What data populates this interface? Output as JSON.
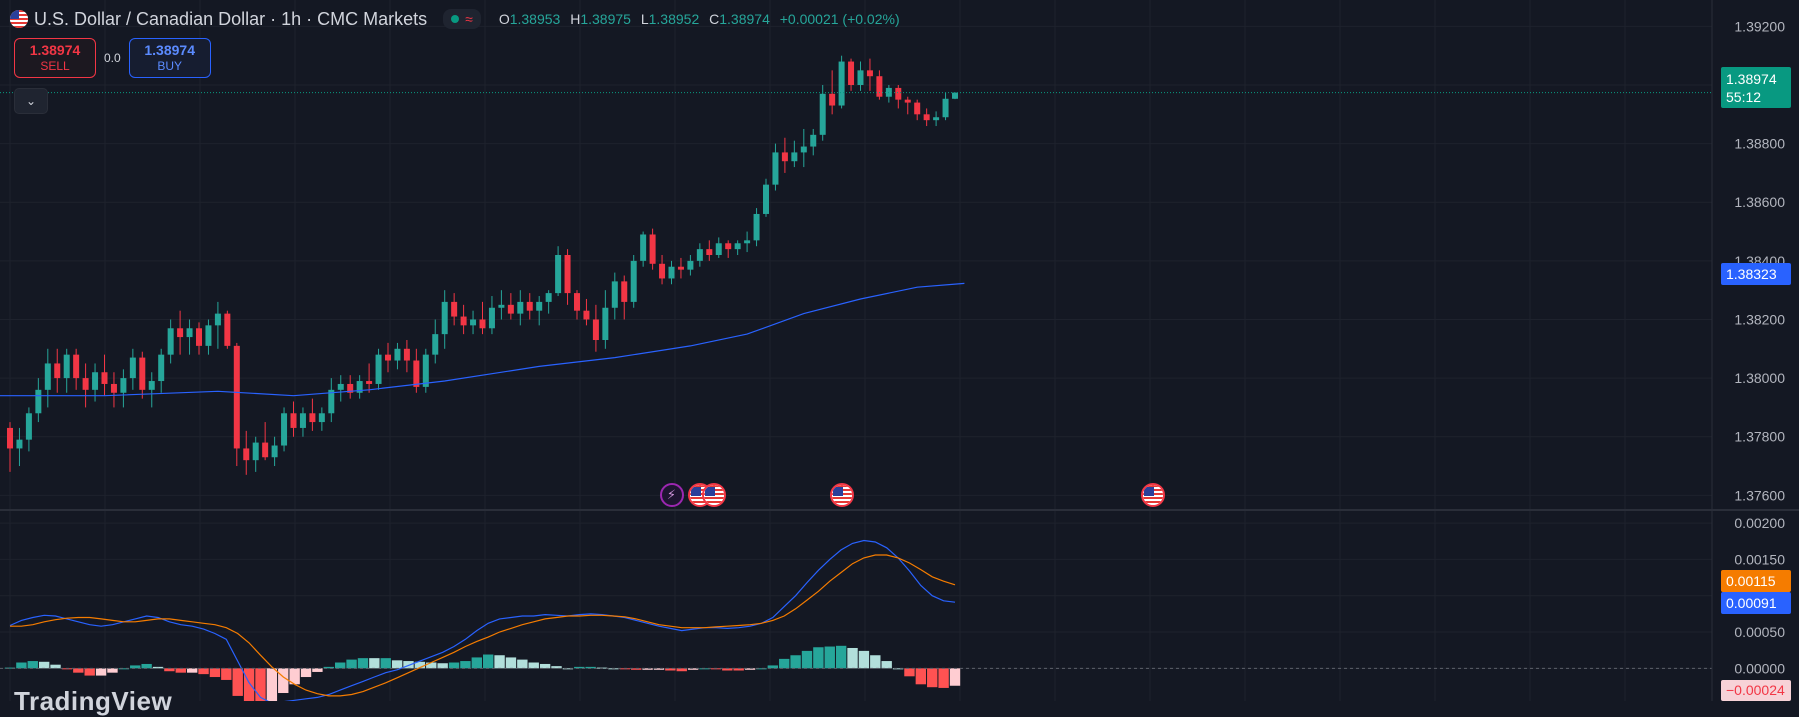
{
  "header": {
    "title": "U.S. Dollar / Canadian Dollar · 1h · CMC Markets",
    "status_icon": "wave-icon",
    "ohlc": {
      "o_label": "O",
      "o": "1.38953",
      "h_label": "H",
      "h": "1.38975",
      "l_label": "L",
      "l": "1.38952",
      "c_label": "C",
      "c": "1.38974",
      "change": "+0.00021 (+0.02%)"
    }
  },
  "trade": {
    "sell_price": "1.38974",
    "sell_label": "SELL",
    "spread": "0.0",
    "buy_price": "1.38974",
    "buy_label": "BUY"
  },
  "price_axis": {
    "last_price": "1.38974",
    "countdown": "55:12",
    "ma_value": "1.38323",
    "ticks": [
      "1.39200",
      "1.39000",
      "1.38800",
      "1.38600",
      "1.38400",
      "1.38200",
      "1.38000",
      "1.37800",
      "1.37600"
    ]
  },
  "macd_axis": {
    "signal_value": "0.00115",
    "macd_value": "0.00091",
    "hist_value": "−0.00024",
    "ticks": [
      "0.00200",
      "0.00150",
      "0.00100",
      "0.00050",
      "0.00000"
    ]
  },
  "watermark": "TradingView",
  "events": [
    {
      "type": "bolt",
      "icon": "lightning-icon",
      "index": 70
    },
    {
      "type": "flag",
      "icon": "us-flag-icon",
      "index": 73
    },
    {
      "type": "flag",
      "icon": "us-flag-icon",
      "index": 74.5
    },
    {
      "type": "flag",
      "icon": "us-flag-icon",
      "index": 88
    },
    {
      "type": "flag",
      "icon": "us-flag-icon",
      "index": 121
    }
  ],
  "chart_data": {
    "type": "candlestick",
    "price_range": [
      1.3755,
      1.3929
    ],
    "macd_range": [
      -0.00045,
      0.00218
    ],
    "colors": {
      "up": "#26a69a",
      "down": "#f23645",
      "ma": "#2962ff",
      "macd": "#2962ff",
      "signal": "#f57c00"
    },
    "candles": [
      [
        1.3783,
        1.3785,
        1.3768,
        1.3776
      ],
      [
        1.3776,
        1.3783,
        1.377,
        1.3779
      ],
      [
        1.3779,
        1.379,
        1.3775,
        1.3788
      ],
      [
        1.3788,
        1.38,
        1.3785,
        1.3796
      ],
      [
        1.3796,
        1.381,
        1.379,
        1.3805
      ],
      [
        1.3805,
        1.381,
        1.3795,
        1.38
      ],
      [
        1.38,
        1.381,
        1.3795,
        1.3808
      ],
      [
        1.3808,
        1.381,
        1.3796,
        1.38
      ],
      [
        1.38,
        1.3805,
        1.379,
        1.3796
      ],
      [
        1.3796,
        1.3805,
        1.3792,
        1.3802
      ],
      [
        1.3802,
        1.3808,
        1.3794,
        1.3798
      ],
      [
        1.3798,
        1.3802,
        1.379,
        1.3795
      ],
      [
        1.3795,
        1.3803,
        1.379,
        1.38
      ],
      [
        1.38,
        1.381,
        1.3796,
        1.3807
      ],
      [
        1.3807,
        1.3809,
        1.3793,
        1.3796
      ],
      [
        1.3796,
        1.3802,
        1.379,
        1.3799
      ],
      [
        1.3799,
        1.381,
        1.3795,
        1.3808
      ],
      [
        1.3808,
        1.382,
        1.3805,
        1.3817
      ],
      [
        1.3817,
        1.3823,
        1.3808,
        1.3814
      ],
      [
        1.3814,
        1.382,
        1.3808,
        1.3817
      ],
      [
        1.3817,
        1.3819,
        1.3808,
        1.3811
      ],
      [
        1.3811,
        1.382,
        1.3808,
        1.3818
      ],
      [
        1.3818,
        1.3826,
        1.381,
        1.3822
      ],
      [
        1.3822,
        1.3823,
        1.381,
        1.3811
      ],
      [
        1.3811,
        1.3812,
        1.377,
        1.3776
      ],
      [
        1.3776,
        1.3782,
        1.3767,
        1.3772
      ],
      [
        1.3772,
        1.378,
        1.3768,
        1.3778
      ],
      [
        1.3778,
        1.3785,
        1.3772,
        1.3773
      ],
      [
        1.3773,
        1.378,
        1.377,
        1.3777
      ],
      [
        1.3777,
        1.379,
        1.3775,
        1.3788
      ],
      [
        1.3788,
        1.3792,
        1.378,
        1.3783
      ],
      [
        1.3783,
        1.379,
        1.378,
        1.3788
      ],
      [
        1.3788,
        1.3793,
        1.3782,
        1.3785
      ],
      [
        1.3785,
        1.379,
        1.3782,
        1.3788
      ],
      [
        1.3788,
        1.38,
        1.3785,
        1.3796
      ],
      [
        1.3796,
        1.3801,
        1.3792,
        1.3798
      ],
      [
        1.3798,
        1.3801,
        1.3793,
        1.3795
      ],
      [
        1.3795,
        1.3801,
        1.3793,
        1.3799
      ],
      [
        1.3799,
        1.3805,
        1.3795,
        1.3798
      ],
      [
        1.3798,
        1.381,
        1.3796,
        1.3808
      ],
      [
        1.3808,
        1.3812,
        1.3802,
        1.3806
      ],
      [
        1.3806,
        1.3812,
        1.3803,
        1.381
      ],
      [
        1.381,
        1.3813,
        1.3802,
        1.3806
      ],
      [
        1.3806,
        1.381,
        1.3795,
        1.3797
      ],
      [
        1.3797,
        1.381,
        1.3795,
        1.3808
      ],
      [
        1.3808,
        1.382,
        1.3805,
        1.3815
      ],
      [
        1.3815,
        1.383,
        1.381,
        1.3826
      ],
      [
        1.3826,
        1.3829,
        1.3818,
        1.3821
      ],
      [
        1.3821,
        1.3825,
        1.3815,
        1.3818
      ],
      [
        1.3818,
        1.3823,
        1.3815,
        1.382
      ],
      [
        1.382,
        1.3826,
        1.3815,
        1.3817
      ],
      [
        1.3817,
        1.3828,
        1.3815,
        1.3824
      ],
      [
        1.3824,
        1.383,
        1.382,
        1.3825
      ],
      [
        1.3825,
        1.3829,
        1.382,
        1.3822
      ],
      [
        1.3822,
        1.383,
        1.3818,
        1.3826
      ],
      [
        1.3826,
        1.3829,
        1.382,
        1.3823
      ],
      [
        1.3823,
        1.3828,
        1.3818,
        1.3826
      ],
      [
        1.3826,
        1.383,
        1.3822,
        1.3829
      ],
      [
        1.3829,
        1.3845,
        1.3828,
        1.3842
      ],
      [
        1.3842,
        1.3844,
        1.3825,
        1.3829
      ],
      [
        1.3829,
        1.383,
        1.382,
        1.3823
      ],
      [
        1.3823,
        1.3827,
        1.3818,
        1.382
      ],
      [
        1.382,
        1.3825,
        1.3809,
        1.3813
      ],
      [
        1.3813,
        1.383,
        1.381,
        1.3824
      ],
      [
        1.3824,
        1.3836,
        1.382,
        1.3833
      ],
      [
        1.3833,
        1.3835,
        1.382,
        1.3826
      ],
      [
        1.3826,
        1.3842,
        1.3824,
        1.384
      ],
      [
        1.384,
        1.385,
        1.3838,
        1.3849
      ],
      [
        1.3849,
        1.3851,
        1.3837,
        1.3839
      ],
      [
        1.3839,
        1.3842,
        1.3832,
        1.3834
      ],
      [
        1.3834,
        1.384,
        1.3832,
        1.3838
      ],
      [
        1.3838,
        1.3841,
        1.3834,
        1.3837
      ],
      [
        1.3837,
        1.3842,
        1.3835,
        1.384
      ],
      [
        1.384,
        1.3846,
        1.3838,
        1.3844
      ],
      [
        1.3844,
        1.3847,
        1.384,
        1.3842
      ],
      [
        1.3842,
        1.3848,
        1.3841,
        1.3846
      ],
      [
        1.3846,
        1.3847,
        1.3841,
        1.3844
      ],
      [
        1.3844,
        1.3847,
        1.3842,
        1.3846
      ],
      [
        1.3846,
        1.385,
        1.3843,
        1.3847
      ],
      [
        1.3847,
        1.3858,
        1.3845,
        1.3856
      ],
      [
        1.3856,
        1.3868,
        1.3855,
        1.3866
      ],
      [
        1.3866,
        1.388,
        1.3864,
        1.3877
      ],
      [
        1.3877,
        1.3882,
        1.387,
        1.3874
      ],
      [
        1.3874,
        1.3881,
        1.3872,
        1.3877
      ],
      [
        1.3877,
        1.3885,
        1.3872,
        1.3879
      ],
      [
        1.3879,
        1.3885,
        1.3876,
        1.3883
      ],
      [
        1.3883,
        1.39,
        1.3881,
        1.3897
      ],
      [
        1.3897,
        1.3905,
        1.389,
        1.3893
      ],
      [
        1.3893,
        1.391,
        1.3892,
        1.3908
      ],
      [
        1.3908,
        1.3909,
        1.3898,
        1.39
      ],
      [
        1.39,
        1.3908,
        1.3898,
        1.3905
      ],
      [
        1.3905,
        1.3909,
        1.3898,
        1.3903
      ],
      [
        1.3903,
        1.3905,
        1.3895,
        1.3896
      ],
      [
        1.3896,
        1.39,
        1.3894,
        1.3899
      ],
      [
        1.3899,
        1.39,
        1.3892,
        1.3895
      ],
      [
        1.3895,
        1.3896,
        1.389,
        1.3894
      ],
      [
        1.3894,
        1.3895,
        1.3888,
        1.389
      ],
      [
        1.389,
        1.3892,
        1.3886,
        1.3888
      ],
      [
        1.3888,
        1.3891,
        1.3886,
        1.3889
      ],
      [
        1.3889,
        1.38975,
        1.3888,
        1.38953
      ],
      [
        1.38953,
        1.38975,
        1.38952,
        1.38974
      ]
    ],
    "ma": {
      "start": 1.3794,
      "points": [
        [
          0,
          1.3794
        ],
        [
          10,
          1.3794
        ],
        [
          22,
          1.37955
        ],
        [
          30,
          1.3794
        ],
        [
          38,
          1.3796
        ],
        [
          46,
          1.3799
        ],
        [
          56,
          1.3804
        ],
        [
          64,
          1.3807
        ],
        [
          72,
          1.3811
        ],
        [
          78,
          1.3815
        ],
        [
          84,
          1.3822
        ],
        [
          90,
          1.3827
        ],
        [
          96,
          1.3831
        ],
        [
          101,
          1.38323
        ]
      ]
    },
    "macd": {
      "macd": [
        0.00059,
        0.00066,
        0.0007,
        0.00073,
        0.00072,
        0.00068,
        0.00064,
        0.0006,
        0.00058,
        0.0006,
        0.00064,
        0.00068,
        0.00072,
        0.0007,
        0.00064,
        0.0006,
        0.00058,
        0.00054,
        0.00048,
        0.0004,
        0.0001,
        -0.0002,
        -0.0004,
        -0.00048,
        -0.00046,
        -0.00044,
        -0.00042,
        -0.0004,
        -0.00036,
        -0.0003,
        -0.00024,
        -0.00018,
        -0.00012,
        -6e-05,
        -2e-05,
        4e-05,
        0.0001,
        0.00016,
        0.00022,
        0.0003,
        0.0004,
        0.00052,
        0.00062,
        0.00068,
        0.0007,
        0.00072,
        0.00072,
        0.00074,
        0.00073,
        0.00072,
        0.00074,
        0.00075,
        0.00074,
        0.00072,
        0.0007,
        0.00066,
        0.00062,
        0.00058,
        0.00055,
        0.00052,
        0.00054,
        0.00056,
        0.00056,
        0.00055,
        0.00056,
        0.00058,
        0.00062,
        0.0007,
        0.00085,
        0.001,
        0.00118,
        0.00135,
        0.0015,
        0.00163,
        0.00172,
        0.00176,
        0.00174,
        0.00166,
        0.00152,
        0.00134,
        0.00114,
        0.001,
        0.00093,
        0.00091
      ],
      "signal": [
        0.00058,
        0.00058,
        0.0006,
        0.00064,
        0.00067,
        0.00069,
        0.0007,
        0.0007,
        0.00068,
        0.00066,
        0.00064,
        0.00064,
        0.00066,
        0.00068,
        0.00068,
        0.00066,
        0.00064,
        0.00062,
        0.0006,
        0.00056,
        0.00048,
        0.00035,
        0.00018,
        2e-05,
        -0.00012,
        -0.00022,
        -0.0003,
        -0.00035,
        -0.00038,
        -0.00038,
        -0.00036,
        -0.00032,
        -0.00026,
        -0.0002,
        -0.00013,
        -6e-05,
        1e-05,
        8e-05,
        0.00015,
        0.00022,
        0.0003,
        0.00037,
        0.00043,
        0.0005,
        0.00055,
        0.0006,
        0.00064,
        0.00068,
        0.0007,
        0.00072,
        0.00072,
        0.00073,
        0.00073,
        0.00072,
        0.00071,
        0.00068,
        0.00064,
        0.0006,
        0.00058,
        0.00056,
        0.00056,
        0.00056,
        0.00057,
        0.00058,
        0.00059,
        0.0006,
        0.00062,
        0.00066,
        0.00072,
        0.00082,
        0.00094,
        0.00106,
        0.0012,
        0.00132,
        0.00144,
        0.00152,
        0.00156,
        0.00156,
        0.00152,
        0.00145,
        0.00136,
        0.00126,
        0.0012,
        0.00115
      ]
    }
  }
}
